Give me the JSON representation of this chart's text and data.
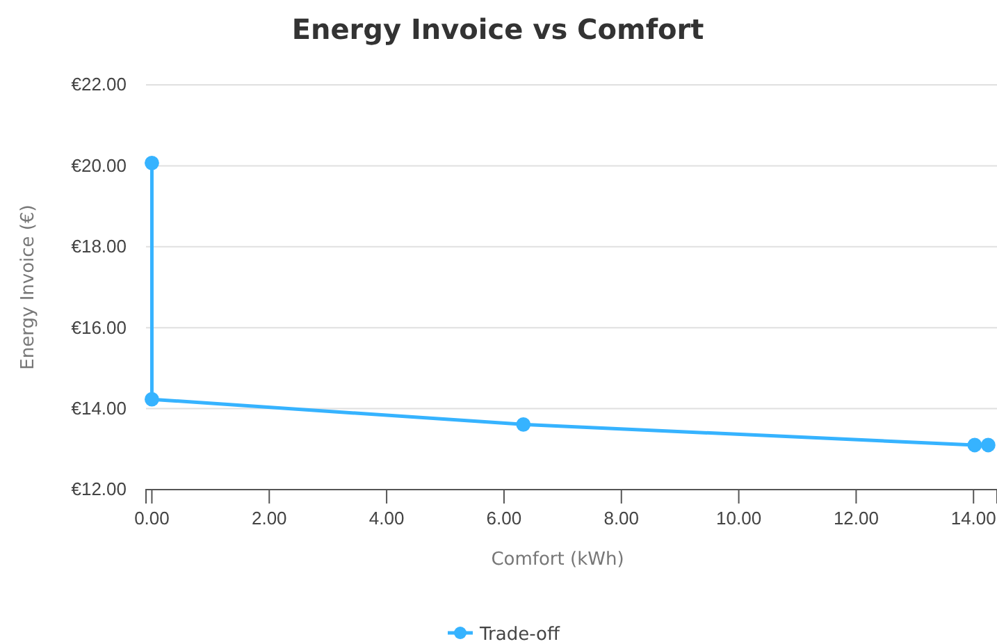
{
  "chart_data": {
    "type": "line",
    "title": "Energy Invoice vs Comfort",
    "xlabel": "Comfort (kWh)",
    "ylabel": "Energy Invoice (€)",
    "x": [
      0,
      0,
      6.33,
      14.02,
      14.25
    ],
    "series": [
      {
        "name": "Trade-off",
        "color": "#36b3ff",
        "values": [
          20.07,
          14.23,
          13.61,
          13.1,
          13.1
        ]
      }
    ],
    "xlim": [
      -0.1,
      14.4
    ],
    "xticks": [
      {
        "value": 0,
        "label": "0.00"
      },
      {
        "value": 2,
        "label": "2.00"
      },
      {
        "value": 4,
        "label": "4.00"
      },
      {
        "value": 6,
        "label": "6.00"
      },
      {
        "value": 8,
        "label": "8.00"
      },
      {
        "value": 10,
        "label": "10.00"
      },
      {
        "value": 12,
        "label": "12.00"
      },
      {
        "value": 14,
        "label": "14.00"
      }
    ],
    "ylim": [
      12,
      22
    ],
    "yticks": [
      {
        "value": 12,
        "label": "€12.00"
      },
      {
        "value": 14,
        "label": "€14.00"
      },
      {
        "value": 16,
        "label": "€16.00"
      },
      {
        "value": 18,
        "label": "€18.00"
      },
      {
        "value": 20,
        "label": "€20.00"
      },
      {
        "value": 22,
        "label": "€22.00"
      }
    ],
    "grid": "y",
    "legend": "bottom",
    "marker": "circle",
    "line_style": "solid"
  }
}
